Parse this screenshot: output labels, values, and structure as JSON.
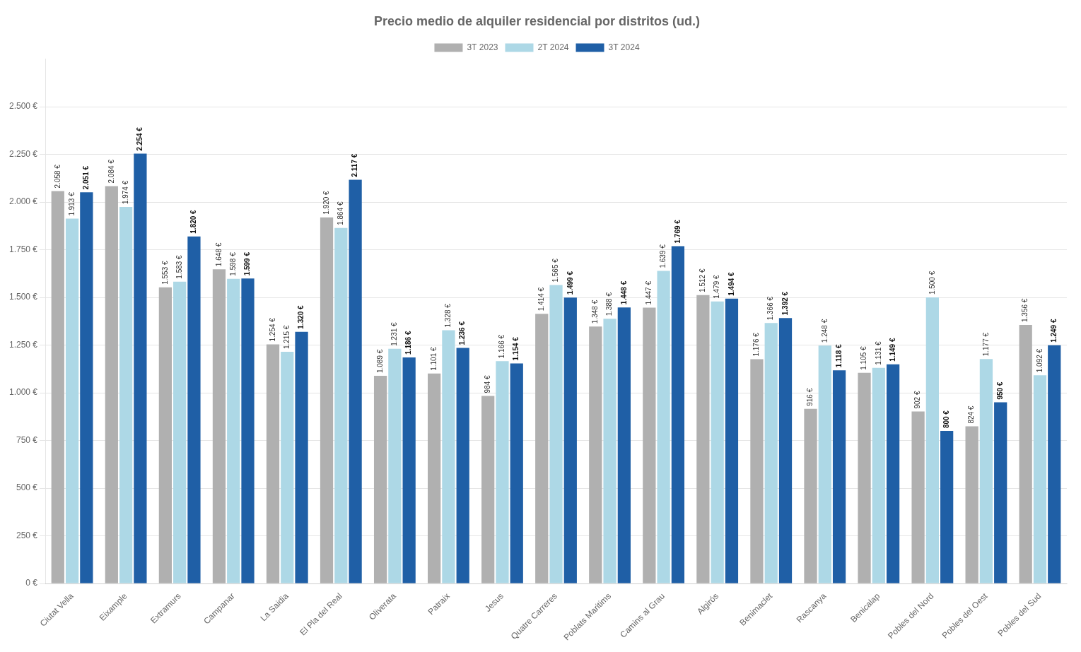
{
  "chart_data": {
    "type": "bar",
    "title": "Precio medio de alquiler residencial por distritos (ud.)",
    "categories": [
      "Ciutat Vella",
      "Eixample",
      "Extramurs",
      "Campanar",
      "La Saidia",
      "El Pla del Real",
      "Oliverata",
      "Patraix",
      "Jesus",
      "Quatre Carreres",
      "Poblats Maritims",
      "Camins al Grau",
      "Algirós",
      "Benimaclet",
      "Rascanya",
      "Benicalap",
      "Pobles del Nord",
      "Pobles del Oest",
      "Pobles del Sud"
    ],
    "series": [
      {
        "name": "3T 2023",
        "color": "#b0b0b0",
        "values": [
          2058,
          2084,
          1553,
          1648,
          1254,
          1920,
          1089,
          1101,
          984,
          1414,
          1348,
          1447,
          1512,
          1176,
          916,
          1105,
          902,
          824,
          1356
        ],
        "value_labels": [
          "2.058 €",
          "2.084 €",
          "1.553 €",
          "1.648 €",
          "1.254 €",
          "1.920 €",
          "1.089 €",
          "1.101 €",
          "984 €",
          "1.414 €",
          "1.348 €",
          "1.447 €",
          "1.512 €",
          "1.176 €",
          "916 €",
          "1.105 €",
          "902 €",
          "824 €",
          "1.356 €"
        ]
      },
      {
        "name": "2T 2024",
        "color": "#add8e6",
        "values": [
          1913,
          1974,
          1583,
          1598,
          1215,
          1864,
          1231,
          1328,
          1166,
          1565,
          1388,
          1639,
          1479,
          1366,
          1248,
          1131,
          1500,
          1177,
          1092
        ],
        "value_labels": [
          "1.913 €",
          "1.974 €",
          "1.583 €",
          "1.598 €",
          "1.215 €",
          "1.864 €",
          "1.231 €",
          "1.328 €",
          "1.166 €",
          "1.565 €",
          "1.388 €",
          "1.639 €",
          "1.479 €",
          "1.366 €",
          "1.248 €",
          "1.131 €",
          "1.500 €",
          "1.177 €",
          "1.092 €"
        ]
      },
      {
        "name": "3T 2024",
        "color": "#1f5fa6",
        "values": [
          2051,
          2254,
          1820,
          1599,
          1320,
          2117,
          1186,
          1236,
          1154,
          1499,
          1448,
          1769,
          1494,
          1392,
          1118,
          1149,
          800,
          950,
          1249
        ],
        "value_labels": [
          "2.051 €",
          "2.254 €",
          "1.820 €",
          "1.599 €",
          "1.320 €",
          "2.117 €",
          "1.186 €",
          "1.236 €",
          "1.154 €",
          "1.499 €",
          "1.448 €",
          "1.769 €",
          "1.494 €",
          "1.392 €",
          "1.118 €",
          "1.149 €",
          "800 €",
          "950 €",
          "1.249 €"
        ]
      }
    ],
    "ylim": [
      0,
      2750
    ],
    "yticks": [
      {
        "value": 0,
        "label": "0 €"
      },
      {
        "value": 250,
        "label": "250 €"
      },
      {
        "value": 500,
        "label": "500 €"
      },
      {
        "value": 750,
        "label": "750 €"
      },
      {
        "value": 1000,
        "label": "1.000 €"
      },
      {
        "value": 1250,
        "label": "1.250 €"
      },
      {
        "value": 1500,
        "label": "1.500 €"
      },
      {
        "value": 1750,
        "label": "1.750 €"
      },
      {
        "value": 2000,
        "label": "2.000 €"
      },
      {
        "value": 2250,
        "label": "2.250 €"
      },
      {
        "value": 2500,
        "label": "2.500 €"
      }
    ],
    "grid": true,
    "legend": "top",
    "data_labels": true
  }
}
